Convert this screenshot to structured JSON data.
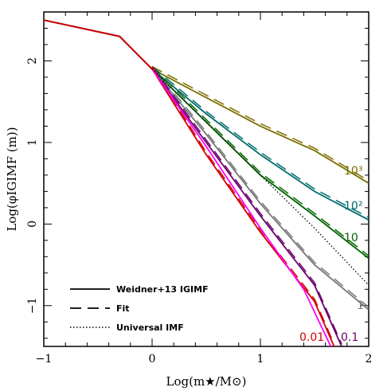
{
  "chart_data": {
    "type": "line",
    "xlabel": "Log(m★/M⊙)",
    "ylabel": "Log(φIGIMF (m))",
    "xlim": [
      -1,
      2
    ],
    "ylim": [
      -1.5,
      2.6
    ],
    "x_ticks": [
      "−1",
      "0",
      "1",
      "2"
    ],
    "y_ticks": [
      "−1",
      "0",
      "1",
      "2"
    ],
    "legend_position": "bottom-left",
    "legend": [
      {
        "label": "Weidner+13 IGIMF",
        "style": "solid"
      },
      {
        "label": "Fit",
        "style": "dashed"
      },
      {
        "label": "Universal IMF",
        "style": "dotted"
      }
    ],
    "series": [
      {
        "name": "10³",
        "color": "#7a7000",
        "x": [
          -1,
          -0.3,
          0,
          0.5,
          1,
          1.5,
          2
        ],
        "y": [
          2.5,
          2.3,
          1.9,
          1.55,
          1.2,
          0.9,
          0.5
        ]
      },
      {
        "name": "10²",
        "color": "#006b6b",
        "x": [
          -1,
          -0.3,
          0,
          0.5,
          1,
          1.5,
          2
        ],
        "y": [
          2.5,
          2.3,
          1.9,
          1.35,
          0.85,
          0.4,
          0.05
        ]
      },
      {
        "name": "10",
        "color": "#006400",
        "x": [
          -1,
          -0.3,
          0,
          0.5,
          1,
          1.5,
          2
        ],
        "y": [
          2.5,
          2.3,
          1.9,
          1.25,
          0.6,
          0.1,
          -0.42
        ]
      },
      {
        "name": "1",
        "color": "#777777",
        "x": [
          -1,
          -0.3,
          0,
          0.5,
          1,
          1.5,
          2
        ],
        "y": [
          2.5,
          2.3,
          1.9,
          1.1,
          0.25,
          -0.5,
          -1.05
        ]
      },
      {
        "name": "0.1",
        "color": "#6a006a",
        "x": [
          -1,
          -0.3,
          0,
          0.5,
          1,
          1.5,
          1.75
        ],
        "y": [
          2.5,
          2.3,
          1.9,
          1.0,
          0.1,
          -0.75,
          -1.5
        ]
      },
      {
        "name": "0.01",
        "color": "#d40000",
        "x": [
          -1,
          -0.3,
          0,
          0.5,
          1,
          1.5,
          1.68
        ],
        "y": [
          2.5,
          2.3,
          1.9,
          0.85,
          -0.1,
          -0.95,
          -1.5
        ]
      },
      {
        "name": "",
        "color": "#ff00ff",
        "x": [
          0,
          0.5,
          1,
          1.4,
          1.65
        ],
        "y": [
          1.9,
          0.95,
          -0.05,
          -0.8,
          -1.5
        ]
      },
      {
        "name": "Universal IMF",
        "color": "#000000",
        "style": "dotted",
        "x": [
          0,
          0.5,
          1,
          1.5,
          2
        ],
        "y": [
          1.9,
          1.25,
          0.6,
          -0.05,
          -0.75
        ]
      }
    ],
    "curve_labels": [
      "10³",
      "10²",
      "10",
      "1",
      "0.1",
      "0.01"
    ]
  }
}
